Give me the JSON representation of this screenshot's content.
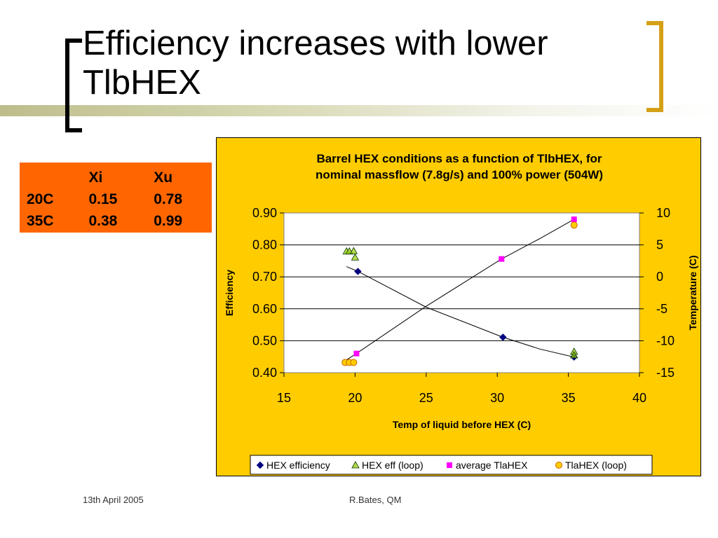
{
  "slide": {
    "title": "Efficiency increases with lower TlbHEX",
    "footer_date": "13th April 2005",
    "footer_author": "R.Bates, QM"
  },
  "table": {
    "headers": [
      "",
      "Xi",
      "Xu"
    ],
    "rows": [
      [
        "20C",
        "0.15",
        "0.78"
      ],
      [
        "35C",
        "0.38",
        "0.99"
      ]
    ]
  },
  "colors": {
    "table_bg": "#ff6600",
    "chart_bg": "#ffcc00",
    "plot_bg": "#ffffff",
    "bracket_right": "#d4a017",
    "hex_efficiency": "#000080",
    "hex_eff_loop": "#99cc00",
    "average_tlahex": "#ff00ff",
    "tlahex_loop": "#ffcc00"
  },
  "chart_data": {
    "type": "scatter",
    "title_lines": [
      "Barrel HEX conditions as a function of TlbHEX, for",
      "nominal massflow (7.8g/s) and 100% power (504W)"
    ],
    "xlabel": "Temp of liquid before HEX (C)",
    "ylabel": "Efficiency",
    "y2label": "Temperature (C)",
    "xlim": [
      15,
      40
    ],
    "ylim": [
      0.4,
      0.9
    ],
    "y2lim": [
      -15,
      10
    ],
    "xticks": [
      "15",
      "20",
      "25",
      "30",
      "35",
      "40"
    ],
    "yticks": [
      "0.40",
      "0.50",
      "0.60",
      "0.70",
      "0.80",
      "0.90"
    ],
    "y2ticks": [
      "-15",
      "-10",
      "-5",
      "0",
      "5",
      "10"
    ],
    "grid": "horizontal",
    "legend_position": "bottom",
    "series": [
      {
        "name": "HEX efficiency",
        "marker": "diamond",
        "axis": "left",
        "color": "#000080",
        "points": [
          [
            20.2,
            0.717
          ],
          [
            30.4,
            0.511
          ],
          [
            35.4,
            0.449
          ]
        ]
      },
      {
        "name": "HEX eff (loop)",
        "marker": "triangle",
        "axis": "left",
        "color": "#99cc00",
        "points": [
          [
            19.4,
            0.78
          ],
          [
            19.6,
            0.78
          ],
          [
            19.9,
            0.781
          ],
          [
            20.0,
            0.761
          ],
          [
            35.4,
            0.466
          ],
          [
            35.4,
            0.455
          ]
        ]
      },
      {
        "name": "average TlaHEX",
        "marker": "square",
        "axis": "right",
        "color": "#ff00ff",
        "points": [
          [
            20.1,
            -12.0
          ],
          [
            30.3,
            2.8
          ],
          [
            35.4,
            9.0
          ]
        ]
      },
      {
        "name": "TlaHEX (loop)",
        "marker": "circle",
        "axis": "right",
        "color": "#ffcc00",
        "points": [
          [
            19.3,
            -13.4
          ],
          [
            19.6,
            -13.4
          ],
          [
            19.9,
            -13.4
          ],
          [
            35.4,
            8.1
          ]
        ]
      }
    ],
    "trendlines": [
      {
        "axis": "left",
        "points": [
          [
            19.4,
            0.732
          ],
          [
            20.2,
            0.717
          ],
          [
            25.0,
            0.605
          ],
          [
            30.4,
            0.511
          ],
          [
            33.0,
            0.474
          ],
          [
            35.4,
            0.449
          ]
        ]
      },
      {
        "axis": "right",
        "points": [
          [
            19.4,
            -13.0
          ],
          [
            20.1,
            -12.0
          ],
          [
            25.0,
            -4.6
          ],
          [
            30.3,
            2.8
          ],
          [
            33.0,
            6.0
          ],
          [
            35.4,
            9.0
          ]
        ]
      }
    ]
  }
}
